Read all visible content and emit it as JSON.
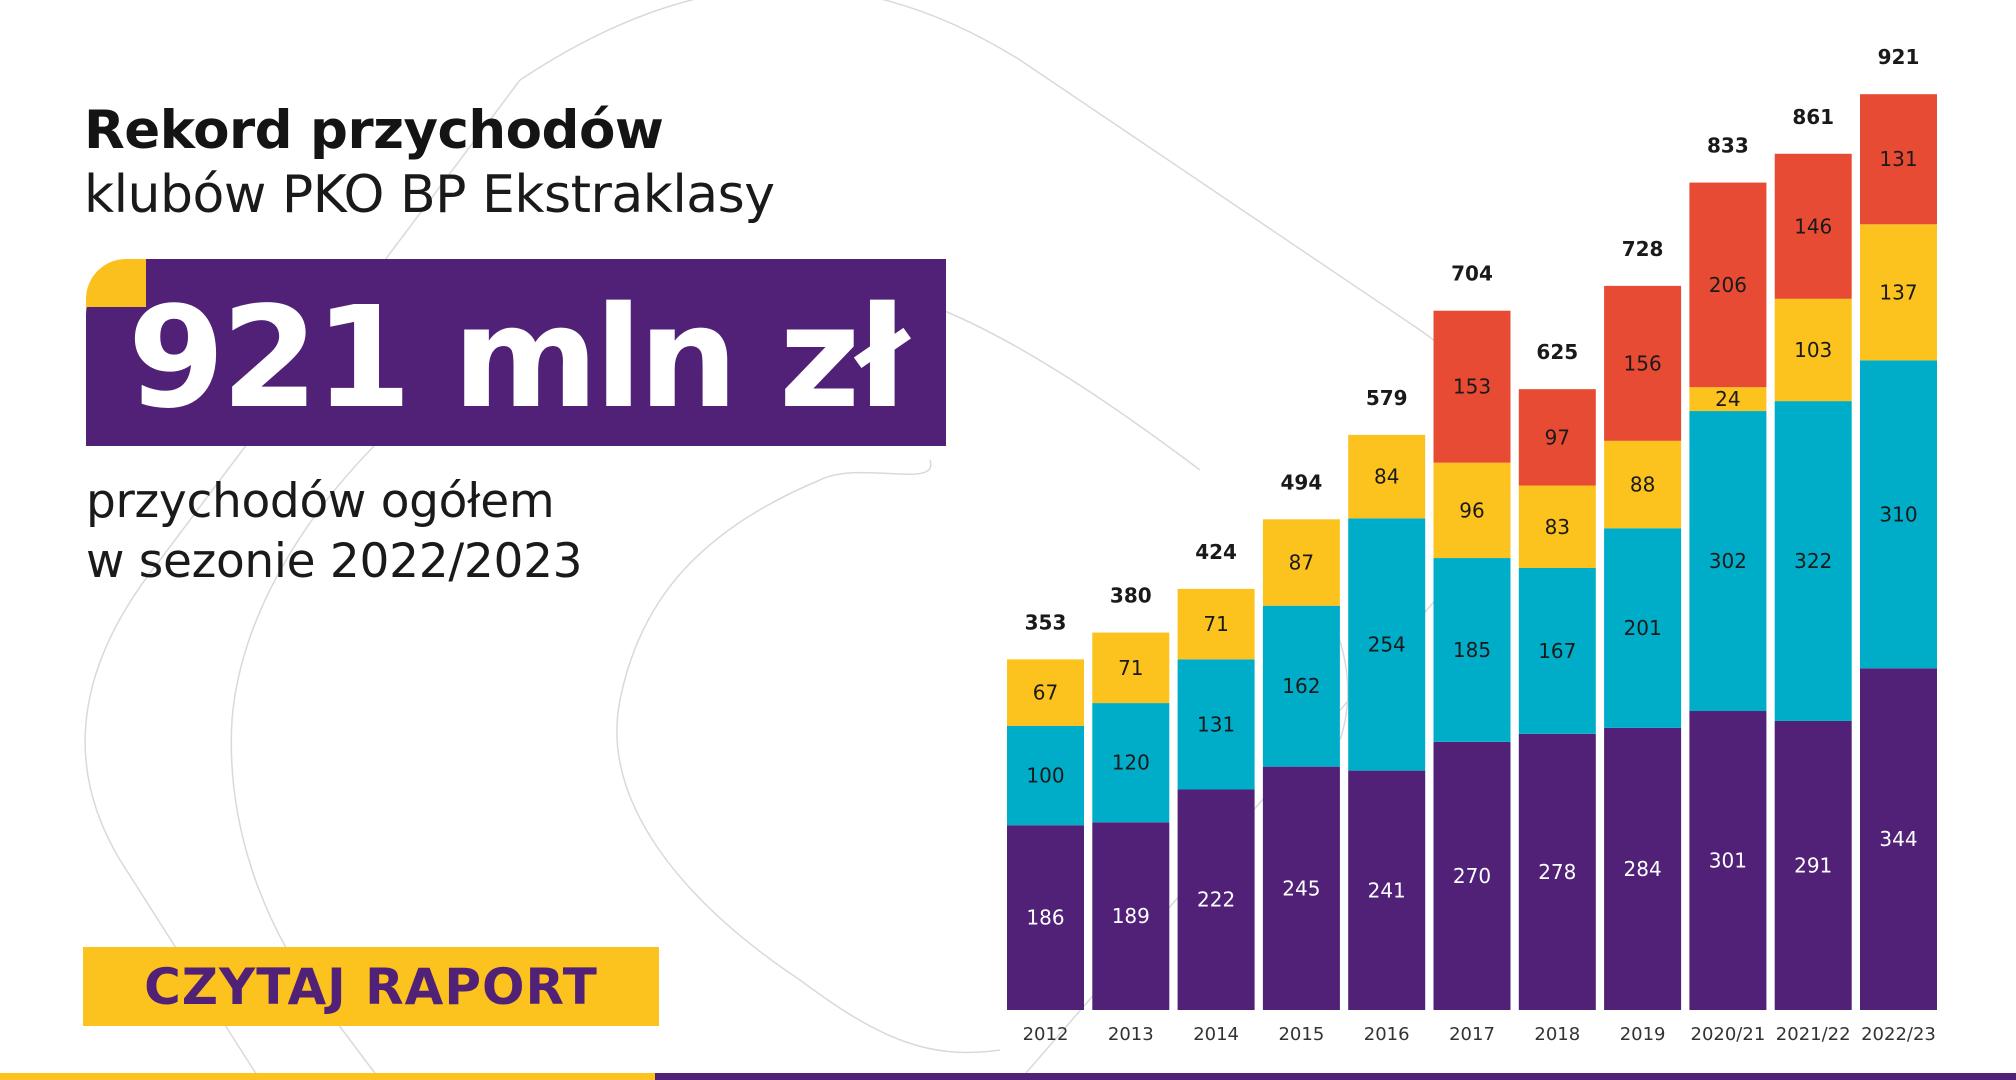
{
  "header": {
    "title_bold": "Rekord przychodów",
    "title_light": "klubów PKO BP Ekstraklasy"
  },
  "hero": {
    "value": "921 mln zł",
    "subtitle_line1": "przychodów ogółem",
    "subtitle_line2": "w sezonie 2022/2023"
  },
  "cta": {
    "label": "CZYTAJ RAPORT"
  },
  "colors": {
    "purple": "#512178",
    "teal": "#00adc9",
    "yellow": "#fcc21e",
    "red": "#e84b34"
  },
  "chart_data": {
    "type": "bar",
    "stacked": true,
    "categories": [
      "2012",
      "2013",
      "2014",
      "2015",
      "2016",
      "2017",
      "2018",
      "2019",
      "2020/21",
      "2021/22",
      "2022/23"
    ],
    "series": [
      {
        "color": "#512178",
        "values": [
          186,
          189,
          222,
          245,
          241,
          270,
          278,
          284,
          301,
          291,
          344
        ]
      },
      {
        "color": "#00adc9",
        "values": [
          100,
          120,
          131,
          162,
          254,
          185,
          167,
          201,
          302,
          322,
          310
        ]
      },
      {
        "color": "#fcc21e",
        "values": [
          67,
          71,
          71,
          87,
          84,
          96,
          83,
          88,
          24,
          103,
          137
        ]
      },
      {
        "color": "#e84b34",
        "values": [
          null,
          null,
          null,
          null,
          null,
          153,
          97,
          156,
          206,
          146,
          131
        ]
      }
    ],
    "totals": [
      353,
      380,
      424,
      494,
      579,
      704,
      625,
      728,
      833,
      861,
      921
    ],
    "grid": false,
    "legend": "none"
  }
}
